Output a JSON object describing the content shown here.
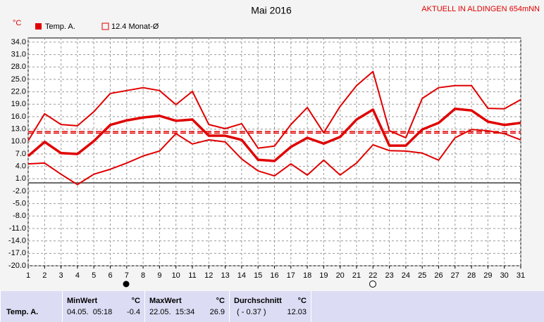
{
  "chart_data": {
    "type": "line",
    "title": "Mai 2016",
    "station": "AKTUELL IN ALDINGEN 654mNN",
    "unit": "°C",
    "legend": "Temp. A.",
    "monthly_avg": {
      "value": 12.4,
      "label": "12.4 Monat-Ø"
    },
    "x": [
      1,
      2,
      3,
      4,
      5,
      6,
      7,
      8,
      9,
      10,
      11,
      12,
      13,
      14,
      15,
      16,
      17,
      18,
      19,
      20,
      21,
      22,
      23,
      24,
      25,
      26,
      27,
      28,
      29,
      30,
      31
    ],
    "xlim": [
      1,
      31
    ],
    "ylim": [
      -20,
      35
    ],
    "yticks": [
      {
        "value": 34,
        "label": "34.0"
      },
      {
        "value": 31,
        "label": "31.0"
      },
      {
        "value": 28,
        "label": "28.0"
      },
      {
        "value": 25,
        "label": "25.0"
      },
      {
        "value": 22,
        "label": "22.0"
      },
      {
        "value": 19,
        "label": "19.0"
      },
      {
        "value": 16,
        "label": "16.0"
      },
      {
        "value": 13,
        "label": "13.0"
      },
      {
        "value": 10,
        "label": "10.0"
      },
      {
        "value": 7,
        "label": "7.0"
      },
      {
        "value": 4,
        "label": "4.0"
      },
      {
        "value": 1,
        "label": "1.0"
      },
      {
        "value": -2,
        "label": "-2.0"
      },
      {
        "value": -5,
        "label": "-5.0"
      },
      {
        "value": -8,
        "label": "-8.0"
      },
      {
        "value": -11,
        "label": "-11.0"
      },
      {
        "value": -14,
        "label": "-14.0"
      },
      {
        "value": -17,
        "label": "-17.0"
      },
      {
        "value": -20,
        "label": "-20.0"
      }
    ],
    "grid": true,
    "color": "#e00000",
    "series": [
      {
        "values": [
          10.2,
          16.7,
          14.1,
          13.8,
          17.2,
          21.6,
          22.3,
          23.0,
          22.3,
          18.9,
          22.1,
          14.1,
          13.1,
          14.3,
          8.4,
          8.9,
          14.1,
          18.2,
          12.1,
          18.5,
          23.5,
          26.9,
          12.6,
          10.9,
          20.4,
          23.0,
          23.5,
          23.5,
          18.0,
          17.9,
          20.1
        ]
      },
      {
        "values": [
          6.5,
          9.9,
          7.2,
          7.0,
          10.1,
          14.0,
          15.1,
          15.8,
          16.2,
          15.0,
          15.3,
          11.4,
          11.4,
          10.4,
          5.6,
          5.3,
          8.7,
          10.9,
          9.5,
          11.1,
          15.3,
          17.7,
          9.0,
          9.0,
          12.9,
          14.5,
          17.9,
          17.5,
          14.8,
          14.0,
          14.5
        ]
      },
      {
        "values": [
          4.6,
          4.8,
          2.1,
          -0.4,
          2.1,
          3.3,
          4.8,
          6.5,
          7.7,
          11.9,
          9.4,
          10.4,
          9.9,
          5.8,
          2.9,
          1.7,
          4.6,
          1.9,
          5.5,
          1.9,
          4.8,
          9.2,
          7.8,
          7.7,
          7.2,
          5.5,
          10.9,
          12.9,
          12.6,
          11.9,
          10.4
        ]
      }
    ]
  },
  "table": {
    "row_label": "Temp. A.",
    "min": {
      "title": "MinWert",
      "unit": "°C",
      "time": "04.05.  05:18",
      "value": "-0.4"
    },
    "max": {
      "title": "MaxWert",
      "unit": "°C",
      "time": "22.05.  15:34",
      "value": "26.9"
    },
    "avg": {
      "title": "Durchschnitt",
      "unit": "°C",
      "time": "( - 0.37 )",
      "value": 12.03
    }
  }
}
